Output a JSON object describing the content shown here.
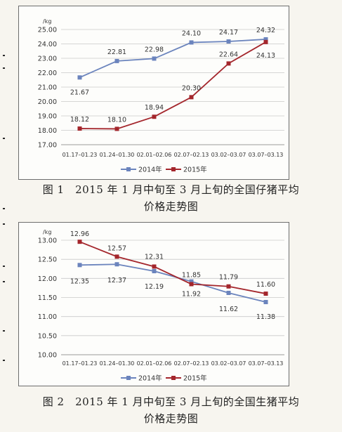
{
  "figures": [
    {
      "caption": "图 1　2015 年 1 月中旬至 3 月上旬的全国仔猪平均价格走势图",
      "colors": {
        "2014年": "#6b84bd",
        "2015年": "#a4262c"
      }
    },
    {
      "caption": "图 2　2015 年 1 月中旬至 3 月上旬的全国生猪平均价格走势图",
      "colors": {
        "2014年": "#6b84bd",
        "2015年": "#a4262c"
      }
    }
  ],
  "chart_data": [
    {
      "type": "line",
      "title": "",
      "unit": "/kg",
      "categories": [
        "01.17–01.23",
        "01.24–01.30",
        "02.01–02.06",
        "02.07–02.13",
        "03.02–03.07",
        "03.07–03.13"
      ],
      "series": [
        {
          "name": "2014年",
          "values": [
            21.67,
            22.81,
            22.98,
            24.1,
            24.17,
            24.32
          ],
          "labels": [
            "21.67",
            "22.81",
            "22.98",
            "24.10",
            "24.17",
            "24.32"
          ]
        },
        {
          "name": "2015年",
          "values": [
            18.12,
            18.1,
            18.94,
            20.3,
            22.64,
            24.13
          ],
          "labels": [
            "18.12",
            "18.10",
            "18.94",
            "20.30",
            "22.64",
            "24.13"
          ]
        }
      ],
      "yticks": [
        "25.00",
        "24.00",
        "23.00",
        "22.00",
        "21.00",
        "20.00",
        "19.00",
        "18.00",
        "17.00"
      ],
      "ylim": [
        17,
        25
      ],
      "grid": true,
      "legend": "bottom"
    },
    {
      "type": "line",
      "title": "",
      "unit": "/kg",
      "categories": [
        "01.17–01.23",
        "01.24–01.30",
        "02.01–02.06",
        "02.07–02.13",
        "03.02–03.07",
        "03.07–03.13"
      ],
      "series": [
        {
          "name": "2014年",
          "values": [
            12.35,
            12.37,
            12.19,
            11.92,
            11.62,
            11.38
          ],
          "labels": [
            "12.35",
            "12.37",
            "12.19",
            "11.92",
            "11.62",
            "11.38"
          ]
        },
        {
          "name": "2015年",
          "values": [
            12.96,
            12.57,
            12.31,
            11.85,
            11.79,
            11.6
          ],
          "labels": [
            "12.96",
            "12.57",
            "12.31",
            "11.85",
            "11.79",
            "11.60"
          ]
        }
      ],
      "yticks": [
        "13.00",
        "12.50",
        "12.00",
        "11.50",
        "11.00",
        "10.50",
        "10.00"
      ],
      "ylim": [
        10,
        13
      ],
      "grid": true,
      "legend": "bottom"
    }
  ]
}
